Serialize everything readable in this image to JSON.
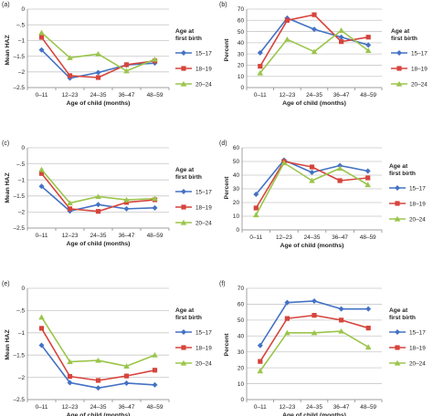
{
  "figure": {
    "panel_tags": [
      "(a)",
      "(b)",
      "(c)",
      "(d)",
      "(e)",
      "(f)"
    ]
  },
  "colors": {
    "age_15_17": "#4472c4",
    "age_18_19": "#d6443c",
    "age_20_24": "#9bc54b",
    "gridline": "#c8c8c8",
    "axis": "#8c8c8c"
  },
  "chart_data": [
    {
      "tag": "(a)",
      "type": "line",
      "ylabel": "Mean HAZ",
      "xlabel": "Age of child (months)",
      "categories": [
        "0–11",
        "12–23",
        "24–35",
        "36–47",
        "48–59"
      ],
      "ylim": [
        -2.5,
        0
      ],
      "yticks": [
        0,
        -0.5,
        -1,
        -1.5,
        -2,
        -2.5
      ],
      "ytick_labels": [
        "0",
        "–.5",
        "–1",
        "–1.5",
        "–2",
        "–2.5"
      ],
      "grid": true,
      "legend_title": [
        "Age at",
        "first birth"
      ],
      "legend_placement": "right",
      "series": [
        {
          "name": "15–17",
          "marker": "diamond",
          "values": [
            -1.3,
            -2.2,
            -2.02,
            -1.78,
            -1.72
          ]
        },
        {
          "name": "18–19",
          "marker": "square",
          "values": [
            -0.9,
            -2.12,
            -2.18,
            -1.77,
            -1.65
          ]
        },
        {
          "name": "20–24",
          "marker": "triangle",
          "values": [
            -0.75,
            -1.55,
            -1.43,
            -1.97,
            -1.6
          ]
        }
      ]
    },
    {
      "tag": "(b)",
      "type": "line",
      "ylabel": "Percent",
      "xlabel": "Age of child (months)",
      "categories": [
        "0–11",
        "12–23",
        "24–35",
        "36–47",
        "48–59"
      ],
      "ylim": [
        0,
        70
      ],
      "yticks": [
        0,
        10,
        20,
        30,
        40,
        50,
        60,
        70
      ],
      "ytick_labels": [
        "0",
        "10",
        "20",
        "30",
        "40",
        "50",
        "60",
        "70"
      ],
      "grid": true,
      "legend_title": [
        "Age at",
        "first birth"
      ],
      "legend_placement": "right",
      "series": [
        {
          "name": "15–17",
          "marker": "diamond",
          "values": [
            31,
            62,
            52,
            45,
            38
          ]
        },
        {
          "name": "18–19",
          "marker": "square",
          "values": [
            19,
            60,
            65,
            41,
            45
          ]
        },
        {
          "name": "20–24",
          "marker": "triangle",
          "values": [
            13,
            43,
            32,
            51,
            33
          ]
        }
      ]
    },
    {
      "tag": "(c)",
      "type": "line",
      "ylabel": "Mean HAZ",
      "xlabel": "Age of child (months)",
      "categories": [
        "0–11",
        "12–23",
        "24–35",
        "36–47",
        "48–59"
      ],
      "ylim": [
        -2.5,
        0
      ],
      "yticks": [
        0,
        -0.5,
        -1,
        -1.5,
        -2,
        -2.5
      ],
      "ytick_labels": [
        "0",
        "–.5",
        "–1",
        "–1.5",
        "–2",
        "–2.5"
      ],
      "grid": true,
      "legend_title": [
        "Age at",
        "first birth"
      ],
      "legend_placement": "right",
      "series": [
        {
          "name": "15–17",
          "marker": "diamond",
          "values": [
            -1.2,
            -1.97,
            -1.77,
            -1.9,
            -1.87
          ]
        },
        {
          "name": "18–19",
          "marker": "square",
          "values": [
            -0.8,
            -1.9,
            -1.98,
            -1.7,
            -1.62
          ]
        },
        {
          "name": "20–24",
          "marker": "triangle",
          "values": [
            -0.68,
            -1.72,
            -1.52,
            -1.62,
            -1.58
          ]
        }
      ]
    },
    {
      "tag": "(d)",
      "type": "line",
      "ylabel": "Percent",
      "xlabel": "Age of child (months)",
      "categories": [
        "0–11",
        "12–23",
        "24–35",
        "36–47",
        "48–59"
      ],
      "ylim": [
        0,
        60
      ],
      "yticks": [
        0,
        10,
        20,
        30,
        40,
        50,
        60
      ],
      "ytick_labels": [
        "0",
        "10",
        "20",
        "30",
        "40",
        "50",
        "60"
      ],
      "grid": true,
      "legend_title": [
        "Age at",
        "first birth"
      ],
      "legend_placement": "right",
      "series": [
        {
          "name": "15–17",
          "marker": "diamond",
          "values": [
            26,
            51,
            42,
            47,
            43
          ]
        },
        {
          "name": "18–19",
          "marker": "square",
          "values": [
            16,
            50,
            46,
            36,
            38
          ]
        },
        {
          "name": "20–24",
          "marker": "triangle",
          "values": [
            11,
            49,
            36,
            45,
            33
          ]
        }
      ]
    },
    {
      "tag": "(e)",
      "type": "line",
      "ylabel": "Mean HAZ",
      "xlabel": "Age of child (months)",
      "categories": [
        "0–11",
        "12–23",
        "24–35",
        "36–47",
        "48–59"
      ],
      "ylim": [
        -2.5,
        0
      ],
      "yticks": [
        0,
        -0.5,
        -1,
        -1.5,
        -2,
        -2.5
      ],
      "ytick_labels": [
        "0",
        "–.5",
        "–1",
        "–1.5",
        "–2",
        "–2.5"
      ],
      "grid": true,
      "legend_title": [
        "Age at",
        "first birth"
      ],
      "legend_placement": "right",
      "series": [
        {
          "name": "15–17",
          "marker": "diamond",
          "values": [
            -1.28,
            -2.12,
            -2.24,
            -2.13,
            -2.17
          ]
        },
        {
          "name": "18–19",
          "marker": "square",
          "values": [
            -0.9,
            -1.98,
            -2.07,
            -1.97,
            -1.84
          ]
        },
        {
          "name": "20–24",
          "marker": "triangle",
          "values": [
            -0.65,
            -1.65,
            -1.62,
            -1.75,
            -1.5
          ]
        }
      ]
    },
    {
      "tag": "(f)",
      "type": "line",
      "ylabel": "Percent",
      "xlabel": "Age of child (months)",
      "categories": [
        "0–11",
        "12–23",
        "24–35",
        "36–47",
        "48–59"
      ],
      "ylim": [
        0,
        70
      ],
      "yticks": [
        0,
        10,
        20,
        30,
        40,
        50,
        60,
        70
      ],
      "ytick_labels": [
        "0",
        "10",
        "20",
        "30",
        "40",
        "50",
        "60",
        "70"
      ],
      "grid": true,
      "legend_title": [
        "Age at",
        "first birth"
      ],
      "legend_placement": "right",
      "series": [
        {
          "name": "15–17",
          "marker": "diamond",
          "values": [
            34,
            61,
            62,
            57,
            57
          ]
        },
        {
          "name": "18–19",
          "marker": "square",
          "values": [
            24,
            51,
            53,
            50,
            45
          ]
        },
        {
          "name": "20–24",
          "marker": "triangle",
          "values": [
            18,
            42,
            42,
            43,
            33
          ]
        }
      ]
    }
  ]
}
